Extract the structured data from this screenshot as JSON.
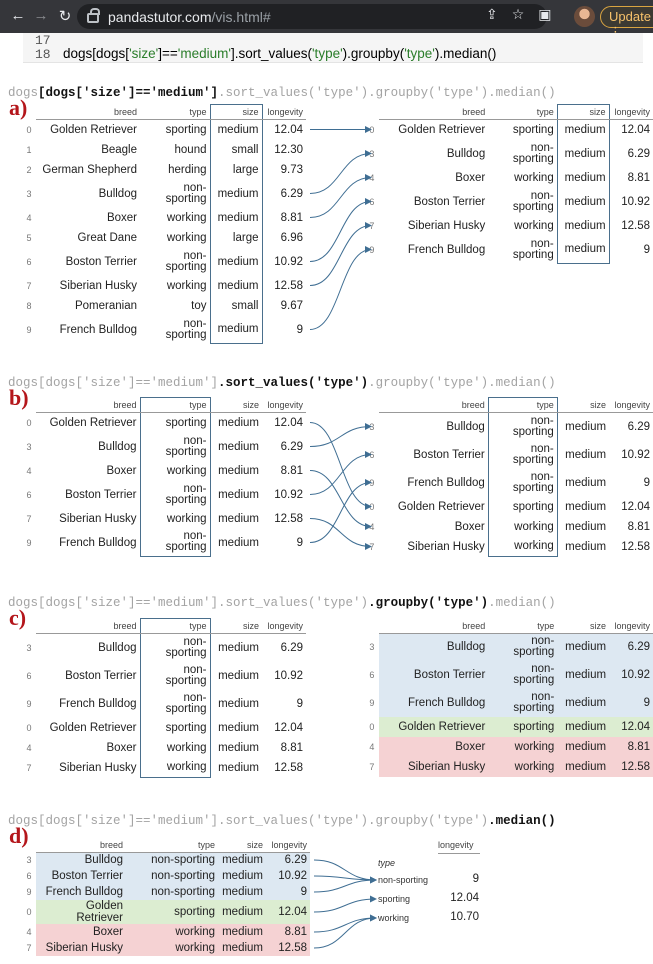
{
  "browser": {
    "host": "pandastutor.com",
    "path": "/vis.html#",
    "update_label": "Update"
  },
  "cell": {
    "line_17": "17",
    "line_18": "18",
    "code_prefix": "dogs[dogs[",
    "code_s1": "'size'",
    "code_mid": "]==",
    "code_s2": "'medium'",
    "code_mid2": "].sort_values(",
    "code_s3": "'type'",
    "code_mid3": ").groupby(",
    "code_s4": "'type'",
    "code_end": ").median()"
  },
  "columns": {
    "breed": "breed",
    "type": "type",
    "size": "size",
    "longevity": "longevity"
  },
  "steps": [
    {
      "letter": "a)",
      "code_pre": "dogs",
      "code_bold": "[dogs['size']=='medium']",
      "code_post": ".sort_values('type').groupby('type').median()"
    },
    {
      "letter": "b)",
      "code_pre": "dogs[dogs['size']=='medium']",
      "code_bold": ".sort_values('type')",
      "code_post": ".groupby('type').median()"
    },
    {
      "letter": "c)",
      "code_pre": "dogs[dogs['size']=='medium'].sort_values('type')",
      "code_bold": ".groupby('type')",
      "code_post": ".median()"
    },
    {
      "letter": "d)",
      "code_pre": "dogs[dogs['size']=='medium'].sort_values('type').groupby('type')",
      "code_bold": ".median()",
      "code_post": ""
    }
  ],
  "tables": {
    "a_left": [
      [
        "0",
        "Golden Retriever",
        "sporting",
        "medium",
        "12.04"
      ],
      [
        "1",
        "Beagle",
        "hound",
        "small",
        "12.30"
      ],
      [
        "2",
        "German Shepherd",
        "herding",
        "large",
        "9.73"
      ],
      [
        "3",
        "Bulldog",
        "non-sporting",
        "medium",
        "6.29"
      ],
      [
        "4",
        "Boxer",
        "working",
        "medium",
        "8.81"
      ],
      [
        "5",
        "Great Dane",
        "working",
        "large",
        "6.96"
      ],
      [
        "6",
        "Boston Terrier",
        "non-sporting",
        "medium",
        "10.92"
      ],
      [
        "7",
        "Siberian Husky",
        "working",
        "medium",
        "12.58"
      ],
      [
        "8",
        "Pomeranian",
        "toy",
        "small",
        "9.67"
      ],
      [
        "9",
        "French Bulldog",
        "non-sporting",
        "medium",
        "9"
      ]
    ],
    "a_right": [
      [
        "0",
        "Golden Retriever",
        "sporting",
        "medium",
        "12.04"
      ],
      [
        "3",
        "Bulldog",
        "non-sporting",
        "medium",
        "6.29"
      ],
      [
        "4",
        "Boxer",
        "working",
        "medium",
        "8.81"
      ],
      [
        "6",
        "Boston Terrier",
        "non-sporting",
        "medium",
        "10.92"
      ],
      [
        "7",
        "Siberian Husky",
        "working",
        "medium",
        "12.58"
      ],
      [
        "9",
        "French Bulldog",
        "non-sporting",
        "medium",
        "9"
      ]
    ],
    "b_right": [
      [
        "3",
        "Bulldog",
        "non-sporting",
        "medium",
        "6.29"
      ],
      [
        "6",
        "Boston Terrier",
        "non-sporting",
        "medium",
        "10.92"
      ],
      [
        "9",
        "French Bulldog",
        "non-sporting",
        "medium",
        "9"
      ],
      [
        "0",
        "Golden Retriever",
        "sporting",
        "medium",
        "12.04"
      ],
      [
        "4",
        "Boxer",
        "working",
        "medium",
        "8.81"
      ],
      [
        "7",
        "Siberian Husky",
        "working",
        "medium",
        "12.58"
      ]
    ]
  },
  "median_result": {
    "header": "longevity",
    "index_name": "type",
    "rows": [
      {
        "key": "non-sporting",
        "value": "9"
      },
      {
        "key": "sporting",
        "value": "12.04"
      },
      {
        "key": "working",
        "value": "10.70"
      }
    ]
  },
  "colors": {
    "non_sporting": "#dde8f2",
    "sporting": "#dcedd1",
    "working": "#f5d2d3",
    "step_letter": "#b4161b",
    "arrow": "#3f6e93"
  }
}
